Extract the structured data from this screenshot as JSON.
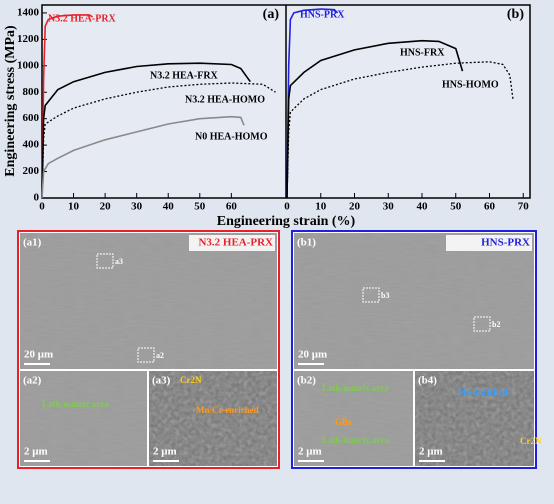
{
  "chart_data": [
    {
      "type": "line",
      "panel": "(a)",
      "ylabel": "Engineering stress (MPa)",
      "xlabel": "Engineering strain (%)",
      "xlim": [
        0,
        77
      ],
      "ylim": [
        0,
        1460
      ],
      "xticks": [
        0,
        10,
        20,
        30,
        40,
        50,
        60
      ],
      "yticks": [
        0,
        200,
        400,
        600,
        800,
        1000,
        1200,
        1400
      ],
      "series": [
        {
          "name": "N3.2 HEA-PRX",
          "color": "#e8202a",
          "style": "solid",
          "x": [
            0,
            0.5,
            1,
            2,
            5,
            10,
            15,
            16
          ],
          "values": [
            0,
            900,
            1300,
            1350,
            1375,
            1385,
            1385,
            1370
          ]
        },
        {
          "name": "N3.2 HEA-FRX",
          "color": "#000000",
          "style": "solid",
          "x": [
            0,
            0.5,
            1,
            5,
            10,
            20,
            30,
            40,
            50,
            60,
            63,
            66
          ],
          "values": [
            0,
            600,
            700,
            820,
            880,
            950,
            995,
            1015,
            1020,
            1010,
            980,
            880
          ]
        },
        {
          "name": "N3.2 HEA-HOMO",
          "color": "#000000",
          "style": "dotted",
          "x": [
            0,
            0.5,
            1,
            5,
            10,
            20,
            30,
            40,
            50,
            60,
            70,
            74
          ],
          "values": [
            0,
            450,
            560,
            620,
            680,
            750,
            800,
            840,
            860,
            870,
            860,
            800
          ]
        },
        {
          "name": "N0 HEA-HOMO",
          "color": "#8a8a8a",
          "style": "solid",
          "x": [
            0,
            0.5,
            2,
            5,
            10,
            20,
            30,
            40,
            50,
            60,
            63,
            64
          ],
          "values": [
            0,
            200,
            260,
            300,
            360,
            440,
            500,
            560,
            600,
            615,
            610,
            550
          ]
        }
      ]
    },
    {
      "type": "line",
      "panel": "(b)",
      "xlim": [
        0,
        72
      ],
      "ylim": [
        0,
        1460
      ],
      "xticks": [
        0,
        10,
        20,
        30,
        40,
        50,
        60,
        70
      ],
      "series": [
        {
          "name": "HNS-PRX",
          "color": "#2020e0",
          "style": "solid",
          "x": [
            0,
            0.5,
            1,
            2,
            5,
            10,
            14,
            15
          ],
          "values": [
            0,
            1000,
            1350,
            1400,
            1420,
            1430,
            1425,
            1400
          ]
        },
        {
          "name": "HNS-FRX",
          "color": "#000000",
          "style": "solid",
          "x": [
            0,
            0.5,
            1,
            5,
            10,
            20,
            30,
            40,
            45,
            50,
            52
          ],
          "values": [
            0,
            750,
            850,
            950,
            1040,
            1120,
            1170,
            1190,
            1185,
            1130,
            960
          ]
        },
        {
          "name": "HNS-HOMO",
          "color": "#000000",
          "style": "dotted",
          "x": [
            0,
            0.5,
            1,
            5,
            10,
            20,
            30,
            40,
            50,
            60,
            64,
            66,
            67
          ],
          "values": [
            0,
            500,
            650,
            750,
            820,
            900,
            950,
            990,
            1020,
            1030,
            1010,
            930,
            740
          ]
        }
      ]
    }
  ],
  "micrographs": [
    {
      "label": "(a1)",
      "title": "N3.2 HEA-PRX",
      "annotations": [
        "a3",
        "a2"
      ],
      "scale": "20 μm"
    },
    {
      "label": "(a2)",
      "annotations": [
        "Lath-matrix area"
      ],
      "scale": "2 μm"
    },
    {
      "label": "(a3)",
      "annotations": [
        "Cr2N",
        "Mn/Cr-enriched"
      ],
      "scale": "2 μm"
    },
    {
      "label": "(b1)",
      "title": "HNS-PRX",
      "annotations": [
        "b3",
        "b2"
      ],
      "scale": "20 μm"
    },
    {
      "label": "(b2)",
      "annotations": [
        "Lath-matrix area",
        "GBs",
        "Lath-matrix area"
      ],
      "scale": "2 μm"
    },
    {
      "label": "(b4)",
      "annotations": [
        "Mo-enriched",
        "Cr2N"
      ],
      "scale": "2 μm"
    }
  ]
}
